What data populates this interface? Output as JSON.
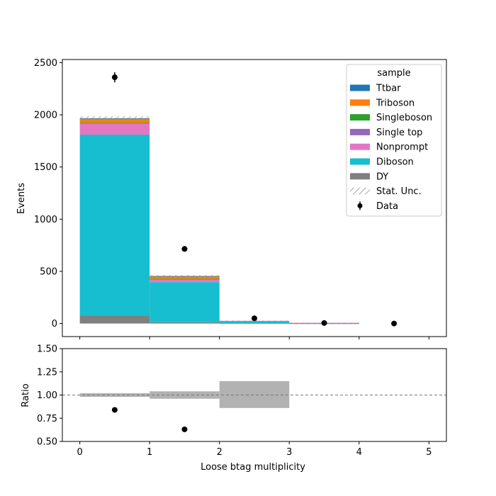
{
  "chart_data": [
    {
      "type": "bar",
      "stacked": true,
      "ylabel": "Events",
      "xlim": [
        -0.25,
        5.25
      ],
      "ylim": [
        -125,
        2530
      ],
      "yticks": [
        0,
        500,
        1000,
        1500,
        2000,
        2500
      ],
      "xticks": [
        0,
        1,
        2,
        3,
        4,
        5
      ],
      "bin_edges": [
        0,
        1,
        2,
        3,
        4,
        5
      ],
      "series": [
        {
          "name": "DY",
          "color": "#7f7f7f",
          "values": [
            75,
            12,
            4,
            1,
            0
          ]
        },
        {
          "name": "Diboson",
          "color": "#17becf",
          "values": [
            1735,
            385,
            20,
            3,
            0
          ]
        },
        {
          "name": "Nonprompt",
          "color": "#e377c2",
          "values": [
            110,
            30,
            2,
            3,
            0
          ]
        },
        {
          "name": "Single top",
          "color": "#9467bd",
          "values": [
            2,
            1,
            0,
            0,
            0
          ]
        },
        {
          "name": "Singleboson",
          "color": "#2ca02c",
          "values": [
            3,
            1,
            0,
            0,
            0
          ]
        },
        {
          "name": "Triboson",
          "color": "#ff7f0e",
          "values": [
            40,
            25,
            0,
            0,
            0
          ]
        },
        {
          "name": "Ttbar",
          "color": "#1f77b4",
          "values": [
            2,
            1,
            0,
            0,
            0
          ]
        }
      ],
      "stat_unc": [
        20,
        10,
        3,
        1,
        0
      ],
      "data": {
        "name": "Data",
        "x": [
          0.5,
          1.5,
          2.5,
          3.5,
          4.5
        ],
        "y": [
          2360,
          715,
          50,
          5,
          0
        ],
        "yerr": [
          48,
          27,
          7,
          2,
          0
        ]
      },
      "legend": {
        "title": "sample",
        "entries": [
          "Ttbar",
          "Triboson",
          "Singleboson",
          "Single top",
          "Nonprompt",
          "Diboson",
          "DY",
          "Stat. Unc.",
          "Data"
        ],
        "position": "top-right"
      }
    },
    {
      "type": "scatter",
      "xlabel": "Loose btag multiplicity",
      "ylabel": "Ratio",
      "xlim": [
        -0.25,
        5.25
      ],
      "ylim": [
        0.5,
        1.5
      ],
      "yticks": [
        "0.50",
        "0.75",
        "1.00",
        "1.25",
        "1.50"
      ],
      "xticks": [
        "0",
        "1",
        "2",
        "3",
        "4",
        "5"
      ],
      "reference_line": 1.0,
      "unc_band": [
        {
          "x0": 0,
          "x1": 1,
          "lo": 0.98,
          "hi": 1.02
        },
        {
          "x0": 1,
          "x1": 2,
          "lo": 0.96,
          "hi": 1.04
        },
        {
          "x0": 2,
          "x1": 3,
          "lo": 0.86,
          "hi": 1.15
        }
      ],
      "points": {
        "x": [
          0.5,
          1.5
        ],
        "y": [
          0.84,
          0.63
        ]
      }
    }
  ]
}
